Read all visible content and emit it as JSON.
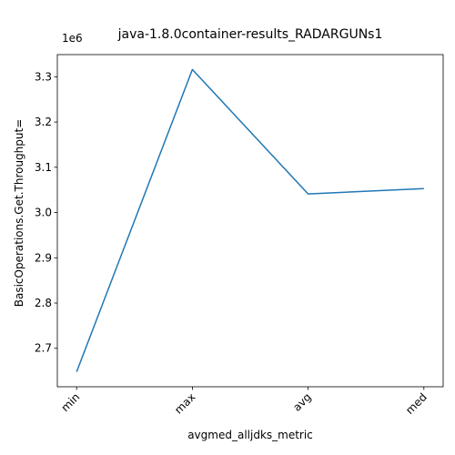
{
  "chart_data": {
    "type": "line",
    "title": "java-1.8.0container-results_RADARGUNs1",
    "xlabel": "avgmed_alljdks_metric",
    "ylabel": "BasicOperations.Get.Throughput=",
    "y_offset_label": "1e6",
    "categories": [
      "min",
      "max",
      "avg",
      "med"
    ],
    "values": [
      2648000,
      3316000,
      3041000,
      3053000
    ],
    "ylim": [
      2615000,
      3349000
    ],
    "y_ticks": [
      2700000,
      2800000,
      2900000,
      3000000,
      3100000,
      3200000,
      3300000
    ],
    "y_tick_labels": [
      "2.7",
      "2.8",
      "2.9",
      "3.0",
      "3.1",
      "3.2",
      "3.3"
    ],
    "grid": false,
    "legend": "none",
    "line_color": "#1f77b4"
  }
}
